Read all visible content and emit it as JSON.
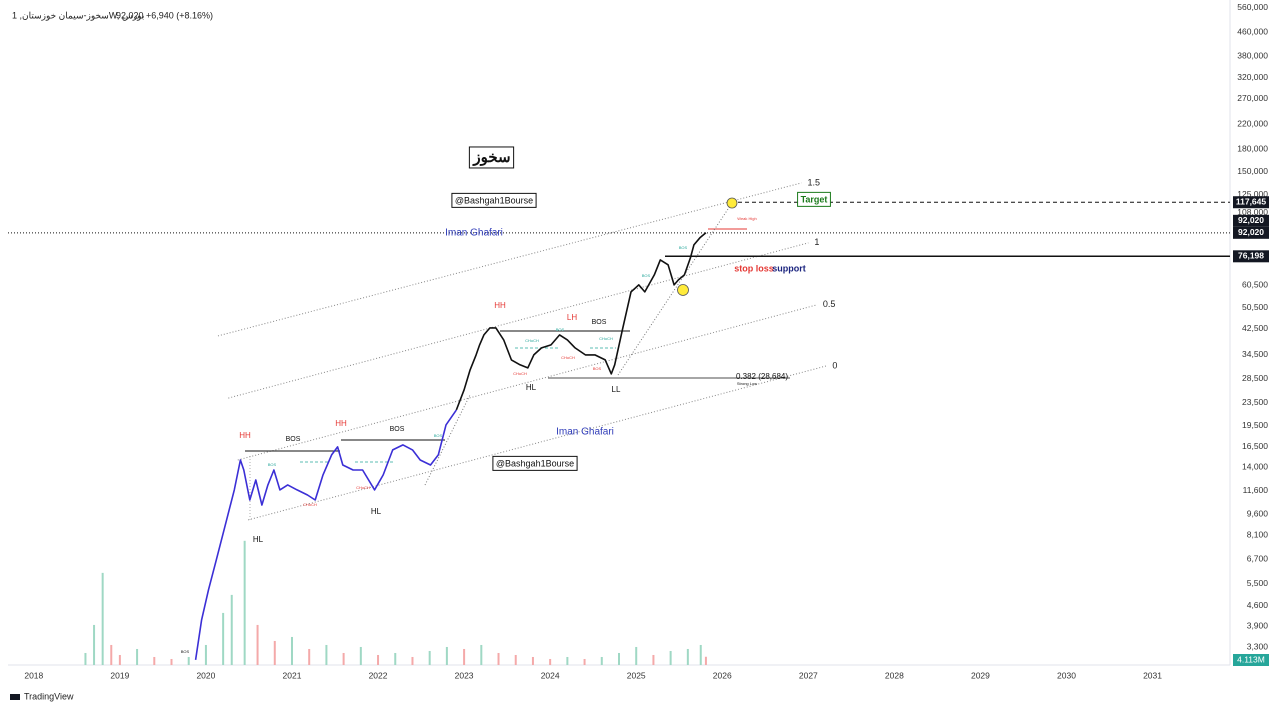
{
  "header": {
    "symbol": "سخوز-سیمان خوزستان, 1W, بورس",
    "price": "92,020",
    "change": "+6,940 (+8.16%)"
  },
  "footer": {
    "brand": "TradingView"
  },
  "chart_data": {
    "type": "line",
    "log_scale": true,
    "grid": false,
    "xlim": [
      2017.7,
      2031.9
    ],
    "ylim": [
      2860,
      597000
    ],
    "xticks": [
      2018,
      2019,
      2020,
      2021,
      2022,
      2023,
      2024,
      2025,
      2026,
      2027,
      2028,
      2029,
      2030,
      2031
    ],
    "yticks": [
      {
        "value": 560000,
        "label": "560,000"
      },
      {
        "value": 460000,
        "label": "460,000"
      },
      {
        "value": 380000,
        "label": "380,000"
      },
      {
        "value": 320000,
        "label": "320,000"
      },
      {
        "value": 270000,
        "label": "270,000"
      },
      {
        "value": 220000,
        "label": "220,000"
      },
      {
        "value": 180000,
        "label": "180,000"
      },
      {
        "value": 150000,
        "label": "150,000"
      },
      {
        "value": 125000,
        "label": "125,000"
      },
      {
        "value": 108000,
        "label": "108,000"
      },
      {
        "value": 60500,
        "label": "60,500"
      },
      {
        "value": 50500,
        "label": "50,500"
      },
      {
        "value": 42500,
        "label": "42,500"
      },
      {
        "value": 34500,
        "label": "34,500"
      },
      {
        "value": 28500,
        "label": "28,500"
      },
      {
        "value": 23500,
        "label": "23,500"
      },
      {
        "value": 19500,
        "label": "19,500"
      },
      {
        "value": 16500,
        "label": "16,500"
      },
      {
        "value": 14000,
        "label": "14,000"
      },
      {
        "value": 11600,
        "label": "11,600"
      },
      {
        "value": 9600,
        "label": "9,600"
      },
      {
        "value": 8100,
        "label": "8,100"
      },
      {
        "value": 6700,
        "label": "6,700"
      },
      {
        "value": 5500,
        "label": "5,500"
      },
      {
        "value": 4600,
        "label": "4,600"
      },
      {
        "value": 3900,
        "label": "3,900"
      },
      {
        "value": 3300,
        "label": "3,300"
      }
    ],
    "series": [
      {
        "color": "#3b2fd6",
        "x": [
          2019.88,
          2019.95,
          2020.03,
          2020.12,
          2020.24,
          2020.33,
          2020.4,
          2020.44,
          2020.51,
          2020.58,
          2020.65,
          2020.72,
          2020.79,
          2020.86,
          2020.95,
          2021.06,
          2021.18,
          2021.27,
          2021.36,
          2021.46,
          2021.53,
          2021.59,
          2021.71,
          2021.82,
          2021.96,
          2022.06,
          2022.17,
          2022.29,
          2022.4,
          2022.49,
          2022.61,
          2022.7,
          2022.79,
          2022.91
        ],
        "values": [
          2980,
          4110,
          5230,
          6650,
          9170,
          11670,
          14840,
          13700,
          10760,
          12640,
          10340,
          12150,
          13700,
          11670,
          12150,
          11670,
          11200,
          10760,
          13170,
          15460,
          16480,
          14260,
          13700,
          13700,
          11670,
          13170,
          16090,
          16750,
          16090,
          14840,
          14260,
          15460,
          19680,
          22190
        ]
      },
      {
        "color": "#111111",
        "x": [
          2022.91,
          2023.0,
          2023.07,
          2023.14,
          2023.18,
          2023.23,
          2023.3,
          2023.37,
          2023.46,
          2023.55,
          2023.65,
          2023.74,
          2023.81,
          2023.9,
          2024.01,
          2024.11,
          2024.2,
          2024.29,
          2024.41,
          2024.52,
          2024.64,
          2024.71,
          2024.75,
          2024.84,
          2024.94,
          2025.03,
          2025.1,
          2025.21,
          2025.28,
          2025.37,
          2025.44,
          2025.49,
          2025.56,
          2025.63,
          2025.67,
          2025.74,
          2025.81
        ],
        "values": [
          22190,
          26070,
          30590,
          34530,
          37400,
          40520,
          42890,
          42890,
          38930,
          33170,
          31870,
          31090,
          34530,
          36510,
          37400,
          40520,
          38930,
          36510,
          34530,
          34530,
          33170,
          29640,
          31870,
          42210,
          57270,
          60570,
          57270,
          65610,
          74050,
          71150,
          60570,
          63040,
          65610,
          75250,
          83510,
          88400,
          92020
        ]
      }
    ],
    "volume": {
      "color_up": "#9fd8c4",
      "color_down": "#f4a9a9",
      "ylim": [
        0,
        332
      ],
      "last_label": "4.113M",
      "x": [
        2018.6,
        2018.7,
        2018.8,
        2018.9,
        2019.0,
        2019.2,
        2019.4,
        2019.6,
        2019.8,
        2020.0,
        2020.2,
        2020.3,
        2020.45,
        2020.6,
        2020.8,
        2021.0,
        2021.2,
        2021.4,
        2021.6,
        2021.8,
        2022.0,
        2022.2,
        2022.4,
        2022.6,
        2022.8,
        2023.0,
        2023.2,
        2023.4,
        2023.6,
        2023.8,
        2024.0,
        2024.2,
        2024.4,
        2024.6,
        2024.8,
        2025.0,
        2025.2,
        2025.4,
        2025.6,
        2025.75,
        2025.81
      ],
      "values": [
        6,
        20,
        46,
        10,
        5,
        8,
        4,
        3,
        4,
        10,
        26,
        35,
        62,
        20,
        12,
        14,
        8,
        10,
        6,
        9,
        5,
        6,
        4,
        7,
        9,
        8,
        10,
        6,
        5,
        4,
        3,
        4,
        3,
        4,
        6,
        9,
        5,
        7,
        8,
        10,
        4.113
      ]
    },
    "price_lines": [
      {
        "value": 117645,
        "label": "117,645",
        "style": "dashed"
      },
      {
        "value": 92020,
        "label": "92,020",
        "style": "dotted"
      },
      {
        "value": 76198,
        "label": "76,198",
        "style": "solid"
      }
    ],
    "channel": [
      {
        "label": "1.5",
        "x": [
          2020.14,
          2026.92
        ],
        "y": [
          40200,
          137400
        ]
      },
      {
        "label": "1",
        "x": [
          2020.26,
          2027.0
        ],
        "y": [
          24400,
          84900
        ]
      },
      {
        "label": "0.5",
        "x": [
          2020.37,
          2027.1
        ],
        "y": [
          14840,
          51600
        ]
      },
      {
        "label": "0",
        "x": [
          2020.49,
          2027.21
        ],
        "y": [
          9170,
          31600
        ]
      }
    ],
    "annotations": [
      "سخوز",
      "@Bashgah1Bourse",
      "@Bashgah1Bourse",
      "Iman Ghafari",
      "Iman Ghafari",
      "HH",
      "BOS",
      "HH",
      "BOS",
      "HL",
      "HL",
      "HH",
      "LH",
      "BOS",
      "HL",
      "LL",
      "0.382 (28,684)",
      "Target",
      "stop loss",
      "support",
      "Weak High",
      "Strong Low",
      "CHoCH",
      "CHoCH",
      "CHoCH",
      "CHoCH",
      "BOS",
      "BOS",
      "BOS",
      "BOS",
      "CHoCH",
      "CHoCH",
      "BOS",
      "BOS",
      "BOS"
    ]
  }
}
